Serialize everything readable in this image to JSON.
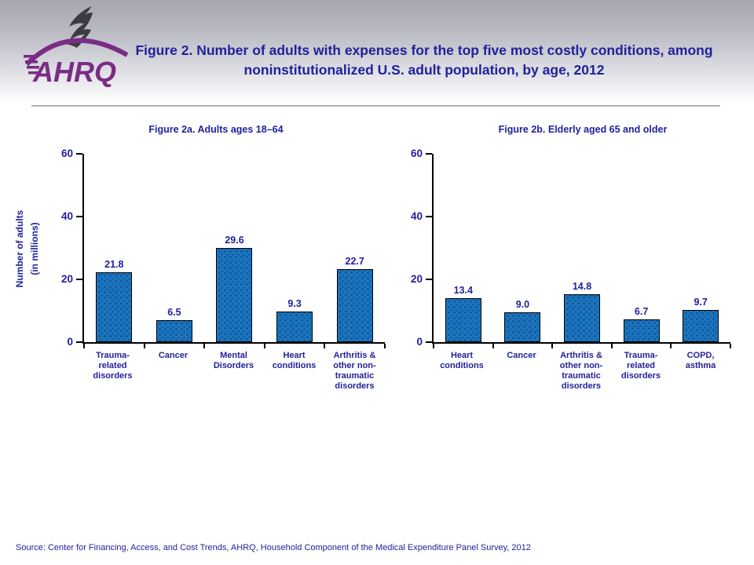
{
  "header": {
    "title": "Figure 2. Number of adults with expenses for the top five most costly conditions, among noninstitutionalized U.S. adult population, by age, 2012",
    "logo_text": "AHRQ",
    "logo_icons": [
      "hhs-eagle-icon",
      "ahrq-swoosh-arc"
    ]
  },
  "colors": {
    "navy_text": "#21219b",
    "bar_fill": "#1b75bc",
    "bar_border": "#000000",
    "logo_purple": "#7a2c84",
    "header_gradient_top": "#a5a6ae",
    "header_gradient_bottom": "#ffffff"
  },
  "chart_data": [
    {
      "type": "bar",
      "title": "Figure 2a. Adults ages 18–64",
      "categories": [
        "Trauma-\nrelated\ndisorders",
        "Cancer",
        "Mental\nDisorders",
        "Heart\nconditions",
        "Arthritis &\nother non-\ntraumatic\ndisorders"
      ],
      "values": [
        21.8,
        6.5,
        29.6,
        9.3,
        22.7
      ],
      "xlabel": "",
      "ylabel": "Number of adults\n(in millions)",
      "ylim": [
        0,
        60
      ],
      "yticks": [
        0,
        20,
        40,
        60
      ],
      "grid": false,
      "legend": "none",
      "bar_color": "#1b75bc"
    },
    {
      "type": "bar",
      "title": "Figure 2b. Elderly aged 65 and older",
      "categories": [
        "Heart\nconditions",
        "Cancer",
        "Arthritis &\nother non-\ntraumatic\ndisorders",
        "Trauma-\nrelated\ndisorders",
        "COPD, asthma"
      ],
      "values": [
        13.4,
        9.0,
        14.8,
        6.7,
        9.7
      ],
      "xlabel": "",
      "ylabel": "",
      "ylim": [
        0,
        60
      ],
      "yticks": [
        0,
        20,
        40,
        60
      ],
      "grid": false,
      "legend": "none",
      "bar_color": "#1b75bc"
    }
  ],
  "source": {
    "text": "Source: Center for Financing, Access, and Cost Trends, AHRQ, Household Component of the Medical Expenditure Panel Survey, 2012"
  }
}
